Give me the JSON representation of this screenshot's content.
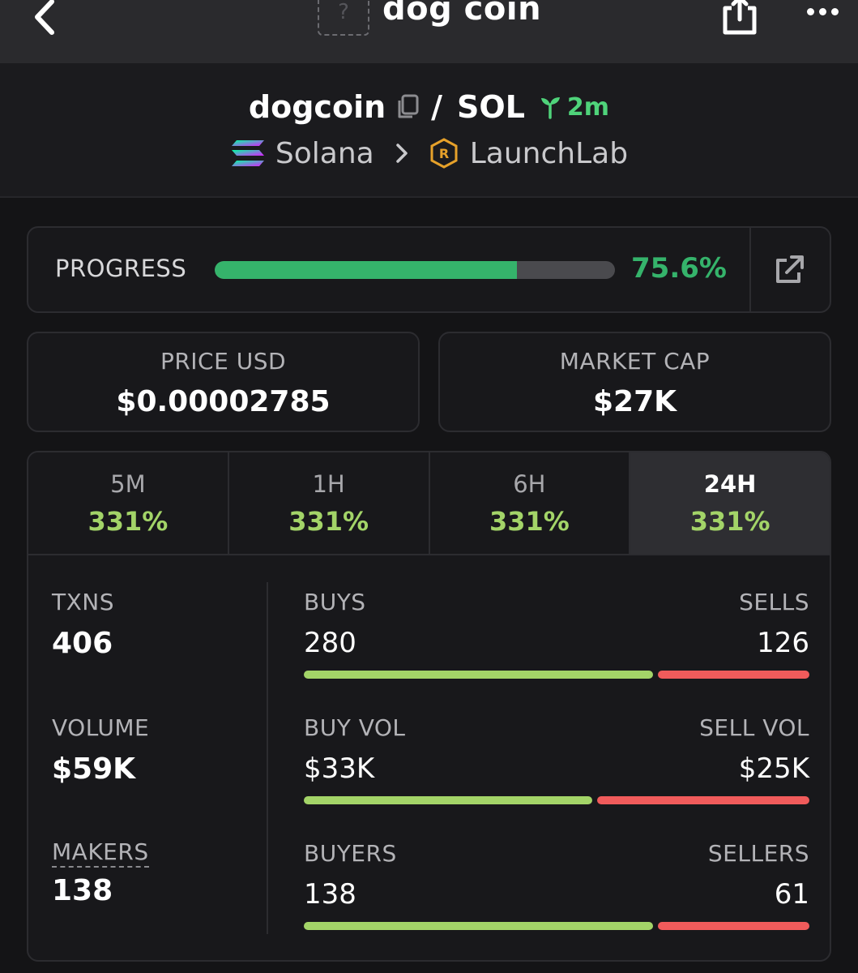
{
  "nav": {
    "title": "dog coin",
    "thumb_placeholder": "?",
    "icons": {
      "back": "chevron-left-icon",
      "share": "share-icon",
      "more": "more-dots-icon"
    }
  },
  "pair": {
    "base": "dogcoin",
    "separator": "/",
    "quote": "SOL",
    "age": "2m",
    "chain": "Solana",
    "dex": "LaunchLab"
  },
  "progress": {
    "label": "PROGRESS",
    "value_text": "75.6%",
    "fraction": 0.756
  },
  "price": {
    "label": "PRICE USD",
    "value": "$0.00002785"
  },
  "market_cap": {
    "label": "MARKET CAP",
    "value": "$27K"
  },
  "tabs": [
    {
      "label": "5M",
      "value": "331%"
    },
    {
      "label": "1H",
      "value": "331%"
    },
    {
      "label": "6H",
      "value": "331%"
    },
    {
      "label": "24H",
      "value": "331%",
      "active": true
    }
  ],
  "metrics": {
    "txns": {
      "label": "TXNS",
      "value": "406"
    },
    "volume": {
      "label": "VOLUME",
      "value": "$59K"
    },
    "makers": {
      "label": "MAKERS",
      "value": "138"
    }
  },
  "splits": {
    "txns": {
      "left_label": "BUYS",
      "right_label": "SELLS",
      "left_value": "280",
      "right_value": "126",
      "buy_fraction": 0.69
    },
    "volume": {
      "left_label": "BUY VOL",
      "right_label": "SELL VOL",
      "left_value": "$33K",
      "right_value": "$25K",
      "buy_fraction": 0.57
    },
    "makers": {
      "left_label": "BUYERS",
      "right_label": "SELLERS",
      "left_value": "138",
      "right_value": "61",
      "buy_fraction": 0.69
    }
  },
  "colors": {
    "green": "#35b36b",
    "lime": "#a3d468",
    "red": "#f05b5b",
    "age_green": "#4fd37a",
    "background": "#141416"
  }
}
